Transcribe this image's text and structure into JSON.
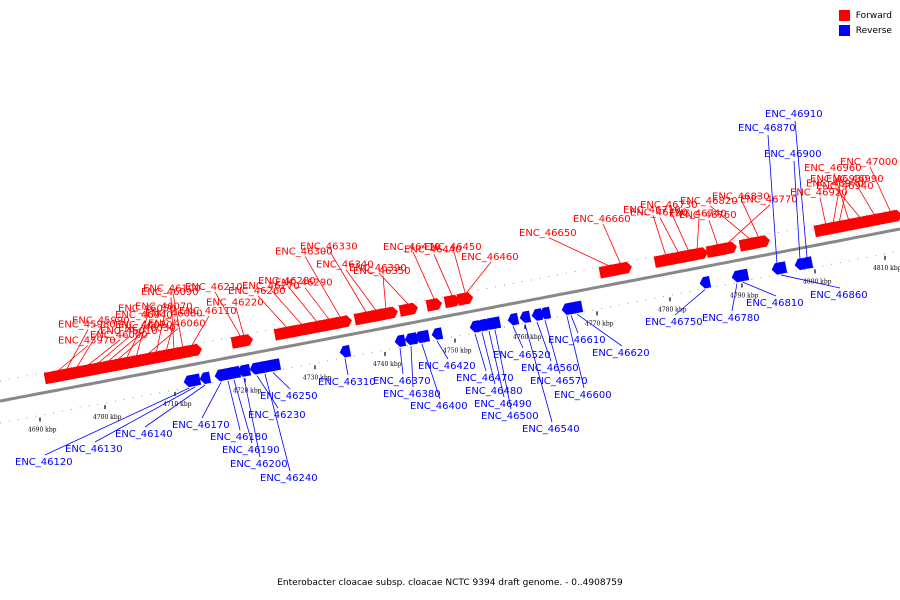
{
  "title": "Enterobacter cloacae subsp. cloacae NCTC 9394 draft genome. - 0..4908759",
  "legend": [
    {
      "label": "Forward",
      "color": "#ff0000"
    },
    {
      "label": "Reverse",
      "color": "#0000ff"
    }
  ],
  "colors": {
    "forward": "#ff0000",
    "reverse": "#0000ff",
    "backbone": "#888888"
  },
  "axis": {
    "unit": "kbp",
    "ticks": [
      "4690 kbp",
      "4700 kbp",
      "4710 kbp",
      "4720 kbp",
      "4730 kbp",
      "4740 kbp",
      "4750 kbp",
      "4760 kbp",
      "4770 kbp",
      "4780 kbp",
      "4790 kbp",
      "4800 kbp",
      "4810 kbp"
    ]
  },
  "forward_genes": [
    "ENC_45970",
    "ENC_45980",
    "ENC_45990",
    "ENC_46000",
    "ENC_46010",
    "ENC_46020",
    "ENC_46030",
    "ENC_46040",
    "ENC_46050",
    "ENC_46060",
    "ENC_46070",
    "ENC_46080",
    "ENC_46090",
    "ENC_46100",
    "ENC_46110",
    "ENC_46210",
    "ENC_46220",
    "ENC_46260",
    "ENC_46270",
    "ENC_46280",
    "ENC_46290",
    "ENC_46300",
    "ENC_46330",
    "ENC_46340",
    "ENC_46350",
    "ENC_46390",
    "ENC_46410",
    "ENC_46440",
    "ENC_46450",
    "ENC_46460",
    "ENC_46650",
    "ENC_46660",
    "ENC_46710",
    "ENC_46720",
    "ENC_46730",
    "ENC_46740",
    "ENC_46760",
    "ENC_46770",
    "ENC_46820",
    "ENC_46830",
    "ENC_46920",
    "ENC_46930",
    "ENC_46940",
    "ENC_46960",
    "ENC_46970",
    "ENC_46990",
    "ENC_47000"
  ],
  "reverse_genes": [
    "ENC_46120",
    "ENC_46130",
    "ENC_46140",
    "ENC_46170",
    "ENC_46180",
    "ENC_46190",
    "ENC_46200",
    "ENC_46230",
    "ENC_46240",
    "ENC_46250",
    "ENC_46310",
    "ENC_46370",
    "ENC_46380",
    "ENC_46400",
    "ENC_46420",
    "ENC_46470",
    "ENC_46480",
    "ENC_46490",
    "ENC_46500",
    "ENC_46520",
    "ENC_46540",
    "ENC_46560",
    "ENC_46570",
    "ENC_46600",
    "ENC_46610",
    "ENC_46620",
    "ENC_46750",
    "ENC_46780",
    "ENC_46810",
    "ENC_46860",
    "ENC_46870",
    "ENC_46900",
    "ENC_46910"
  ]
}
